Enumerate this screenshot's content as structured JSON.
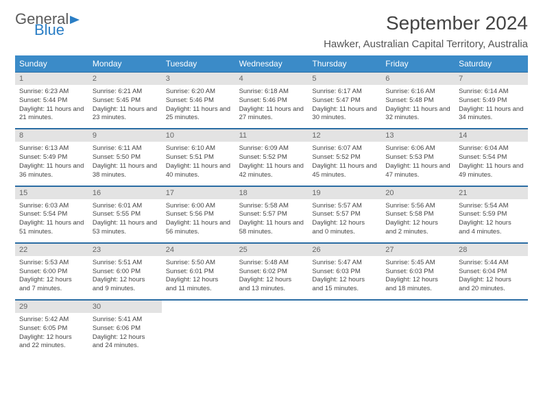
{
  "logo": {
    "text1": "General",
    "text2": "Blue"
  },
  "title": "September 2024",
  "subtitle": "Hawker, Australian Capital Territory, Australia",
  "colors": {
    "header_bg": "#3b8bc8",
    "header_text": "#ffffff",
    "daynum_bg": "#e3e3e3",
    "week_border": "#2a6ca3",
    "logo_gray": "#5a5a5a",
    "logo_blue": "#2a7ec5"
  },
  "day_headers": [
    "Sunday",
    "Monday",
    "Tuesday",
    "Wednesday",
    "Thursday",
    "Friday",
    "Saturday"
  ],
  "weeks": [
    [
      {
        "n": "1",
        "sunrise": "6:23 AM",
        "sunset": "5:44 PM",
        "daylight": "11 hours and 21 minutes."
      },
      {
        "n": "2",
        "sunrise": "6:21 AM",
        "sunset": "5:45 PM",
        "daylight": "11 hours and 23 minutes."
      },
      {
        "n": "3",
        "sunrise": "6:20 AM",
        "sunset": "5:46 PM",
        "daylight": "11 hours and 25 minutes."
      },
      {
        "n": "4",
        "sunrise": "6:18 AM",
        "sunset": "5:46 PM",
        "daylight": "11 hours and 27 minutes."
      },
      {
        "n": "5",
        "sunrise": "6:17 AM",
        "sunset": "5:47 PM",
        "daylight": "11 hours and 30 minutes."
      },
      {
        "n": "6",
        "sunrise": "6:16 AM",
        "sunset": "5:48 PM",
        "daylight": "11 hours and 32 minutes."
      },
      {
        "n": "7",
        "sunrise": "6:14 AM",
        "sunset": "5:49 PM",
        "daylight": "11 hours and 34 minutes."
      }
    ],
    [
      {
        "n": "8",
        "sunrise": "6:13 AM",
        "sunset": "5:49 PM",
        "daylight": "11 hours and 36 minutes."
      },
      {
        "n": "9",
        "sunrise": "6:11 AM",
        "sunset": "5:50 PM",
        "daylight": "11 hours and 38 minutes."
      },
      {
        "n": "10",
        "sunrise": "6:10 AM",
        "sunset": "5:51 PM",
        "daylight": "11 hours and 40 minutes."
      },
      {
        "n": "11",
        "sunrise": "6:09 AM",
        "sunset": "5:52 PM",
        "daylight": "11 hours and 42 minutes."
      },
      {
        "n": "12",
        "sunrise": "6:07 AM",
        "sunset": "5:52 PM",
        "daylight": "11 hours and 45 minutes."
      },
      {
        "n": "13",
        "sunrise": "6:06 AM",
        "sunset": "5:53 PM",
        "daylight": "11 hours and 47 minutes."
      },
      {
        "n": "14",
        "sunrise": "6:04 AM",
        "sunset": "5:54 PM",
        "daylight": "11 hours and 49 minutes."
      }
    ],
    [
      {
        "n": "15",
        "sunrise": "6:03 AM",
        "sunset": "5:54 PM",
        "daylight": "11 hours and 51 minutes."
      },
      {
        "n": "16",
        "sunrise": "6:01 AM",
        "sunset": "5:55 PM",
        "daylight": "11 hours and 53 minutes."
      },
      {
        "n": "17",
        "sunrise": "6:00 AM",
        "sunset": "5:56 PM",
        "daylight": "11 hours and 56 minutes."
      },
      {
        "n": "18",
        "sunrise": "5:58 AM",
        "sunset": "5:57 PM",
        "daylight": "11 hours and 58 minutes."
      },
      {
        "n": "19",
        "sunrise": "5:57 AM",
        "sunset": "5:57 PM",
        "daylight": "12 hours and 0 minutes."
      },
      {
        "n": "20",
        "sunrise": "5:56 AM",
        "sunset": "5:58 PM",
        "daylight": "12 hours and 2 minutes."
      },
      {
        "n": "21",
        "sunrise": "5:54 AM",
        "sunset": "5:59 PM",
        "daylight": "12 hours and 4 minutes."
      }
    ],
    [
      {
        "n": "22",
        "sunrise": "5:53 AM",
        "sunset": "6:00 PM",
        "daylight": "12 hours and 7 minutes."
      },
      {
        "n": "23",
        "sunrise": "5:51 AM",
        "sunset": "6:00 PM",
        "daylight": "12 hours and 9 minutes."
      },
      {
        "n": "24",
        "sunrise": "5:50 AM",
        "sunset": "6:01 PM",
        "daylight": "12 hours and 11 minutes."
      },
      {
        "n": "25",
        "sunrise": "5:48 AM",
        "sunset": "6:02 PM",
        "daylight": "12 hours and 13 minutes."
      },
      {
        "n": "26",
        "sunrise": "5:47 AM",
        "sunset": "6:03 PM",
        "daylight": "12 hours and 15 minutes."
      },
      {
        "n": "27",
        "sunrise": "5:45 AM",
        "sunset": "6:03 PM",
        "daylight": "12 hours and 18 minutes."
      },
      {
        "n": "28",
        "sunrise": "5:44 AM",
        "sunset": "6:04 PM",
        "daylight": "12 hours and 20 minutes."
      }
    ],
    [
      {
        "n": "29",
        "sunrise": "5:42 AM",
        "sunset": "6:05 PM",
        "daylight": "12 hours and 22 minutes."
      },
      {
        "n": "30",
        "sunrise": "5:41 AM",
        "sunset": "6:06 PM",
        "daylight": "12 hours and 24 minutes."
      },
      null,
      null,
      null,
      null,
      null
    ]
  ]
}
